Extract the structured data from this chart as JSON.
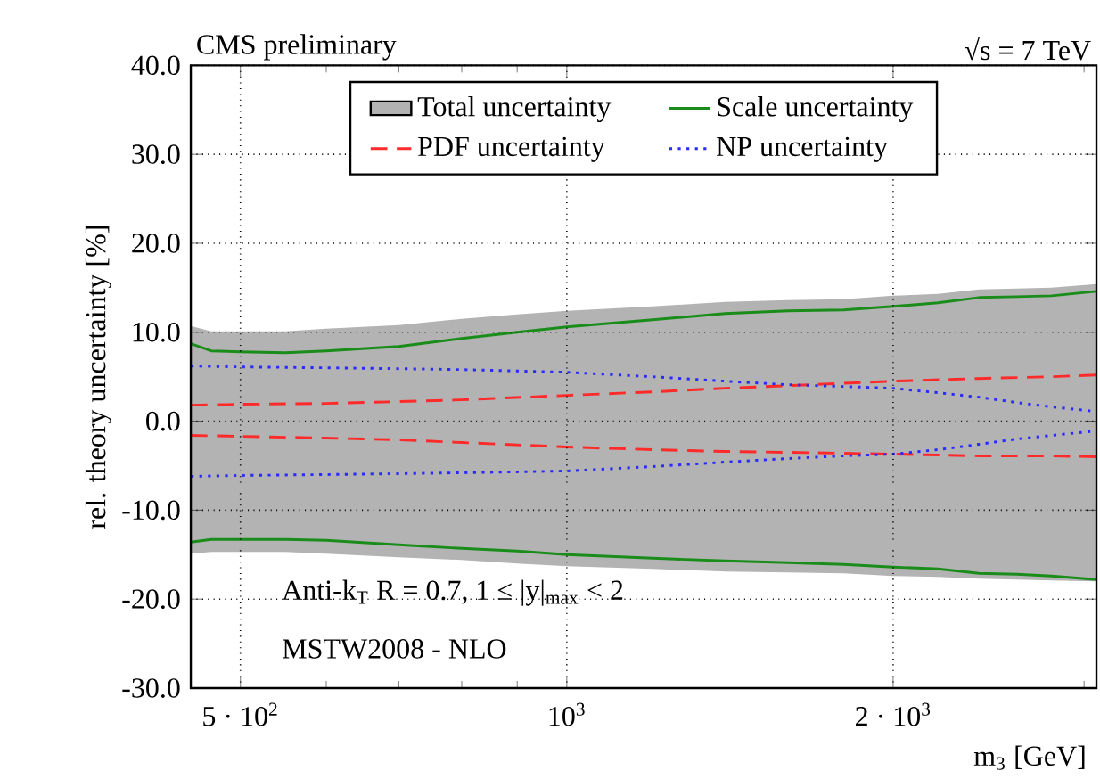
{
  "chart_data": {
    "type": "line",
    "title": "CMS preliminary",
    "xlabel": "m$_{3}$ [GeV]",
    "ylabel": "rel. theory uncertainty [%]",
    "annotations": [
      "√s = 7 TeV",
      "Anti-k$_{T}$ R = 0.7, 1 ≤ |y|$_{max}$ < 2",
      "MSTW2008 - NLO"
    ],
    "log": "x",
    "grid": true,
    "legend": "top",
    "xlim": [
      450,
      3080
    ],
    "ylim": [
      -30,
      40
    ],
    "xticks": [
      {
        "value": 500,
        "label": "5 · 10$^{2}$"
      },
      {
        "value": 600,
        "label": null
      },
      {
        "value": 700,
        "label": null
      },
      {
        "value": 800,
        "label": null
      },
      {
        "value": 900,
        "label": null
      },
      {
        "value": 1000,
        "label": "10$^{3}$"
      },
      {
        "value": 2000,
        "label": "2 · 10$^{3}$"
      },
      {
        "value": 3000,
        "label": null
      }
    ],
    "yticks": [
      {
        "value": -30,
        "label": "-30.0"
      },
      {
        "value": -20,
        "label": "-20.0"
      },
      {
        "value": -10,
        "label": "-10.0"
      },
      {
        "value": 0,
        "label": "0.0"
      },
      {
        "value": 10,
        "label": "10.0"
      },
      {
        "value": 20,
        "label": "20.0"
      },
      {
        "value": 30,
        "label": "30.0"
      },
      {
        "value": 40,
        "label": "40.0"
      }
    ],
    "series": [
      {
        "name": "Total uncertainty",
        "color": "#b3b3b3",
        "x": [
          450,
          470,
          500,
          550,
          600,
          700,
          800,
          900,
          1000,
          1200,
          1400,
          1600,
          1800,
          2000,
          2200,
          2400,
          2600,
          2800,
          3080
        ],
        "values": [
          null,
          null,
          null,
          null,
          null,
          null,
          null,
          null,
          null,
          null,
          null,
          null,
          null,
          null,
          null,
          null,
          null,
          null,
          null
        ],
        "lower": [
          -14.9,
          -14.7,
          -14.7,
          -14.7,
          -14.9,
          -15.3,
          -15.6,
          -16.0,
          -16.3,
          -16.6,
          -16.9,
          -17.0,
          -17.1,
          -17.4,
          -17.5,
          -17.7,
          -17.8,
          -17.9,
          -18.0
        ],
        "upper": [
          10.7,
          10.1,
          10.1,
          10.1,
          10.4,
          10.8,
          11.5,
          12.0,
          12.4,
          12.9,
          13.4,
          13.6,
          13.7,
          14.1,
          14.3,
          14.8,
          14.9,
          15.0,
          15.4
        ]
      },
      {
        "name": "Scale uncertainty",
        "color": "#1a8c1a",
        "line_style": "solid",
        "x": [
          450,
          470,
          500,
          550,
          600,
          700,
          800,
          900,
          1000,
          1200,
          1400,
          1600,
          1800,
          2000,
          2200,
          2400,
          2600,
          2800,
          3080
        ],
        "values": [
          8.7,
          7.9,
          7.8,
          7.7,
          7.9,
          8.4,
          9.3,
          10.0,
          10.6,
          11.4,
          12.1,
          12.4,
          12.5,
          12.9,
          13.3,
          13.9,
          14.0,
          14.1,
          14.6
        ]
      },
      {
        "name": "PDF uncertainty",
        "color": "#ff2a2a",
        "line_style": "dashed",
        "x": [
          450,
          500,
          600,
          700,
          800,
          1000,
          1200,
          1400,
          1600,
          2000,
          2400,
          2800,
          3080
        ],
        "values": [
          1.8,
          1.9,
          2.0,
          2.2,
          2.4,
          2.9,
          3.3,
          3.7,
          4.0,
          4.5,
          4.8,
          5.0,
          5.2
        ]
      },
      {
        "name": "NP uncertainty",
        "color": "#2a2aff",
        "line_style": "dotted",
        "x": [
          450,
          500,
          600,
          700,
          800,
          1000,
          1200,
          1400,
          1600,
          1800,
          2000,
          2200,
          2400,
          2600,
          2800,
          3080
        ],
        "values": [
          6.2,
          6.1,
          6.0,
          5.9,
          5.8,
          5.5,
          5.0,
          4.5,
          4.1,
          3.9,
          3.7,
          3.2,
          2.7,
          2.1,
          1.6,
          1.1
        ]
      },
      {
        "color": "#1a8c1a",
        "line_style": "solid",
        "x": [
          450,
          470,
          500,
          550,
          600,
          700,
          800,
          900,
          1000,
          1200,
          1400,
          1600,
          1800,
          2000,
          2200,
          2400,
          2600,
          2800,
          3080
        ],
        "values": [
          -13.6,
          -13.3,
          -13.3,
          -13.3,
          -13.4,
          -13.9,
          -14.3,
          -14.6,
          -15.0,
          -15.4,
          -15.7,
          -15.9,
          -16.1,
          -16.4,
          -16.6,
          -17.1,
          -17.2,
          -17.4,
          -17.8
        ]
      },
      {
        "color": "#ff2a2a",
        "line_style": "dashed",
        "x": [
          450,
          500,
          600,
          700,
          800,
          1000,
          1200,
          1400,
          1600,
          2000,
          2400,
          2800,
          3080
        ],
        "values": [
          -1.6,
          -1.7,
          -1.9,
          -2.1,
          -2.4,
          -2.9,
          -3.2,
          -3.4,
          -3.5,
          -3.7,
          -3.9,
          -3.9,
          -4.0
        ]
      },
      {
        "color": "#2a2aff",
        "line_style": "dotted",
        "x": [
          450,
          500,
          600,
          700,
          800,
          1000,
          1200,
          1400,
          1600,
          1800,
          2000,
          2200,
          2400,
          2600,
          2800,
          3080
        ],
        "values": [
          -6.2,
          -6.1,
          -6.0,
          -5.9,
          -5.8,
          -5.6,
          -5.1,
          -4.6,
          -4.2,
          -3.9,
          -3.7,
          -3.2,
          -2.6,
          -2.0,
          -1.6,
          -1.1
        ]
      }
    ]
  }
}
